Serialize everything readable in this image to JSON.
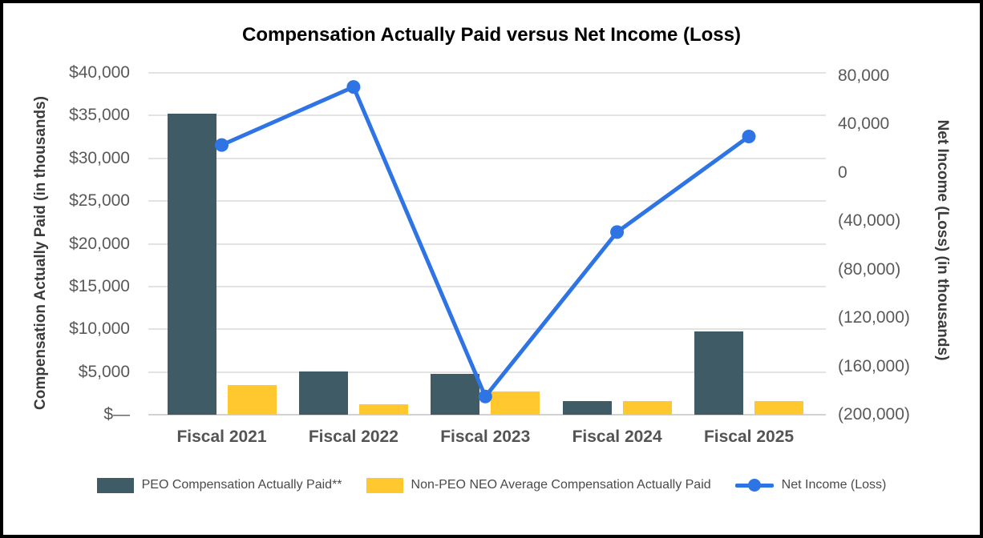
{
  "title": "Compensation Actually Paid versus Net Income (Loss)",
  "chart_data": {
    "type": "combo-bar-line",
    "title": "Compensation Actually Paid versus Net Income (Loss)",
    "categories": [
      "Fiscal 2021",
      "Fiscal 2022",
      "Fiscal 2023",
      "Fiscal 2024",
      "Fiscal 2025"
    ],
    "series": [
      {
        "name": "PEO Compensation Actually Paid**",
        "type": "bar",
        "axis": "left",
        "color": "#3F5C66",
        "values": [
          35200,
          5100,
          4800,
          1600,
          9700
        ]
      },
      {
        "name": "Non-PEO NEO Average Compensation Actually Paid",
        "type": "bar",
        "axis": "left",
        "color": "#FFC82E",
        "values": [
          3500,
          1200,
          2700,
          1600,
          1600
        ]
      },
      {
        "name": "Net Income (Loss)",
        "type": "line",
        "axis": "right",
        "color": "#2E74E5",
        "values": [
          23000,
          71000,
          -185000,
          -49000,
          30000
        ]
      }
    ],
    "left_axis": {
      "label": "Compensation Actually Paid (in thousands)",
      "ticks": [
        "$40,000",
        "$35,000",
        "$30,000",
        "$25,000",
        "$20,000",
        "$15,000",
        "$10,000",
        "$5,000",
        "$—"
      ],
      "range": [
        0,
        40000
      ]
    },
    "right_axis": {
      "label": "Net Income (Loss) (in thousands)",
      "ticks": [
        "80,000",
        "40,000",
        "0",
        "(40,000)",
        "(80,000)",
        "(120,000)",
        "(160,000)",
        "(200,000)"
      ],
      "range": [
        -200000,
        80000
      ]
    },
    "grid": "horizontal",
    "legend_position": "bottom"
  },
  "colors": {
    "background": "#FFFFFF",
    "border": "#000000",
    "gridline": "#E3E3E3",
    "baseline": "#D2D2D2",
    "tick_text": "#595959",
    "axis_title_text": "#3B3B3B",
    "title_text": "#000000",
    "legend_text": "#4A4A4A"
  }
}
